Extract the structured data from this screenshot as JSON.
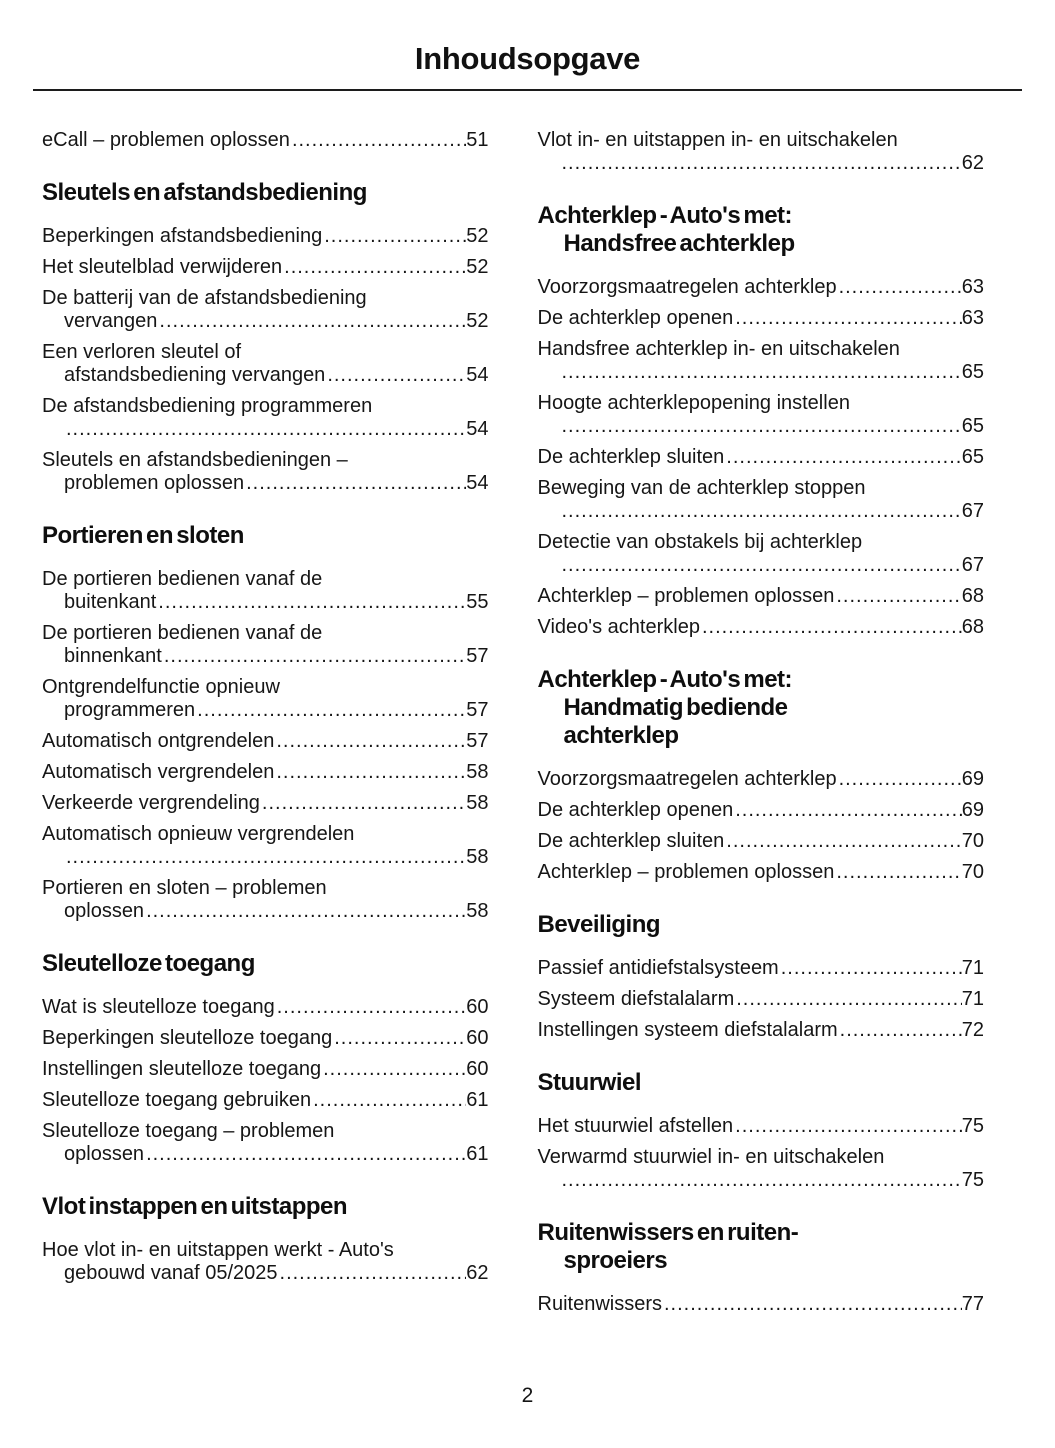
{
  "title": "Inhoudsopgave",
  "page_number": "2",
  "columns": [
    {
      "blocks": [
        {
          "type": "entry",
          "lines": [
            "eCall – problemen oplossen"
          ],
          "page": "51"
        },
        {
          "type": "heading",
          "lines": [
            "Sleutels en afstandsbediening"
          ]
        },
        {
          "type": "entry",
          "lines": [
            "Beperkingen afstandsbediening"
          ],
          "page": "52"
        },
        {
          "type": "entry",
          "lines": [
            "Het sleutelblad verwijderen"
          ],
          "page": "52"
        },
        {
          "type": "entry",
          "lines": [
            "De batterij van de afstandsbediening",
            "vervangen"
          ],
          "page": "52"
        },
        {
          "type": "entry",
          "lines": [
            "Een verloren sleutel of",
            "afstandsbediening vervangen"
          ],
          "page": "54"
        },
        {
          "type": "entry",
          "lines": [
            "De afstandsbediening programmeren",
            ""
          ],
          "page": "54"
        },
        {
          "type": "entry",
          "lines": [
            "Sleutels en afstandsbedieningen –",
            "problemen oplossen"
          ],
          "page": "54"
        },
        {
          "type": "heading",
          "lines": [
            "Portieren en sloten"
          ]
        },
        {
          "type": "entry",
          "lines": [
            "De portieren bedienen vanaf de",
            "buitenkant"
          ],
          "page": "55"
        },
        {
          "type": "entry",
          "lines": [
            "De portieren bedienen vanaf de",
            "binnenkant"
          ],
          "page": "57"
        },
        {
          "type": "entry",
          "lines": [
            "Ontgrendelfunctie opnieuw",
            "programmeren"
          ],
          "page": "57"
        },
        {
          "type": "entry",
          "lines": [
            "Automatisch ontgrendelen"
          ],
          "page": "57"
        },
        {
          "type": "entry",
          "lines": [
            "Automatisch vergrendelen"
          ],
          "page": "58"
        },
        {
          "type": "entry",
          "lines": [
            "Verkeerde vergrendeling"
          ],
          "page": "58"
        },
        {
          "type": "entry",
          "lines": [
            "Automatisch opnieuw vergrendelen",
            ""
          ],
          "page": "58"
        },
        {
          "type": "entry",
          "lines": [
            "Portieren en sloten – problemen",
            "oplossen"
          ],
          "page": "58"
        },
        {
          "type": "heading",
          "lines": [
            "Sleutelloze toegang"
          ]
        },
        {
          "type": "entry",
          "lines": [
            "Wat is sleutelloze toegang"
          ],
          "page": "60"
        },
        {
          "type": "entry",
          "lines": [
            "Beperkingen sleutelloze toegang"
          ],
          "page": "60"
        },
        {
          "type": "entry",
          "lines": [
            "Instellingen sleutelloze toegang"
          ],
          "page": "60"
        },
        {
          "type": "entry",
          "lines": [
            "Sleutelloze toegang gebruiken"
          ],
          "page": "61"
        },
        {
          "type": "entry",
          "lines": [
            "Sleutelloze toegang – problemen",
            "oplossen"
          ],
          "page": "61"
        },
        {
          "type": "heading",
          "lines": [
            "Vlot instappen en uitstappen"
          ]
        },
        {
          "type": "entry",
          "lines": [
            "Hoe vlot in- en uitstappen werkt - Auto's",
            "gebouwd vanaf 05/2025"
          ],
          "page": "62"
        }
      ]
    },
    {
      "blocks": [
        {
          "type": "entry",
          "lines": [
            "Vlot in- en uitstappen in- en uitschakelen",
            ""
          ],
          "page": "62"
        },
        {
          "type": "heading",
          "lines": [
            "Achterklep - Auto's met:",
            "Handsfree achterklep"
          ]
        },
        {
          "type": "entry",
          "lines": [
            "Voorzorgsmaatregelen achterklep"
          ],
          "page": "63"
        },
        {
          "type": "entry",
          "lines": [
            "De achterklep openen"
          ],
          "page": "63"
        },
        {
          "type": "entry",
          "lines": [
            "Handsfree achterklep in- en uitschakelen",
            ""
          ],
          "page": "65"
        },
        {
          "type": "entry",
          "lines": [
            "Hoogte achterklepopening instellen",
            ""
          ],
          "page": "65"
        },
        {
          "type": "entry",
          "lines": [
            "De achterklep sluiten"
          ],
          "page": "65"
        },
        {
          "type": "entry",
          "lines": [
            "Beweging van de achterklep stoppen",
            ""
          ],
          "page": "67"
        },
        {
          "type": "entry",
          "lines": [
            "Detectie van obstakels bij achterklep",
            ""
          ],
          "page": "67"
        },
        {
          "type": "entry",
          "lines": [
            "Achterklep – problemen oplossen"
          ],
          "page": "68"
        },
        {
          "type": "entry",
          "lines": [
            "Video's achterklep"
          ],
          "page": "68"
        },
        {
          "type": "heading",
          "lines": [
            "Achterklep - Auto's met:",
            "Handmatig bediende",
            "achterklep"
          ]
        },
        {
          "type": "entry",
          "lines": [
            "Voorzorgsmaatregelen achterklep"
          ],
          "page": "69"
        },
        {
          "type": "entry",
          "lines": [
            "De achterklep openen"
          ],
          "page": "69"
        },
        {
          "type": "entry",
          "lines": [
            "De achterklep sluiten"
          ],
          "page": "70"
        },
        {
          "type": "entry",
          "lines": [
            "Achterklep – problemen oplossen"
          ],
          "page": "70"
        },
        {
          "type": "heading",
          "lines": [
            "Beveiliging"
          ]
        },
        {
          "type": "entry",
          "lines": [
            "Passief antidiefstalsysteem"
          ],
          "page": "71"
        },
        {
          "type": "entry",
          "lines": [
            "Systeem diefstalalarm"
          ],
          "page": "71"
        },
        {
          "type": "entry",
          "lines": [
            "Instellingen systeem diefstalalarm"
          ],
          "page": "72"
        },
        {
          "type": "heading",
          "lines": [
            "Stuurwiel"
          ]
        },
        {
          "type": "entry",
          "lines": [
            "Het stuurwiel afstellen"
          ],
          "page": "75"
        },
        {
          "type": "entry",
          "lines": [
            "Verwarmd stuurwiel in- en uitschakelen",
            ""
          ],
          "page": "75"
        },
        {
          "type": "heading",
          "lines": [
            "Ruitenwissers en ruiten-",
            "sproeiers"
          ]
        },
        {
          "type": "entry",
          "lines": [
            "Ruitenwissers"
          ],
          "page": "77"
        }
      ]
    }
  ]
}
